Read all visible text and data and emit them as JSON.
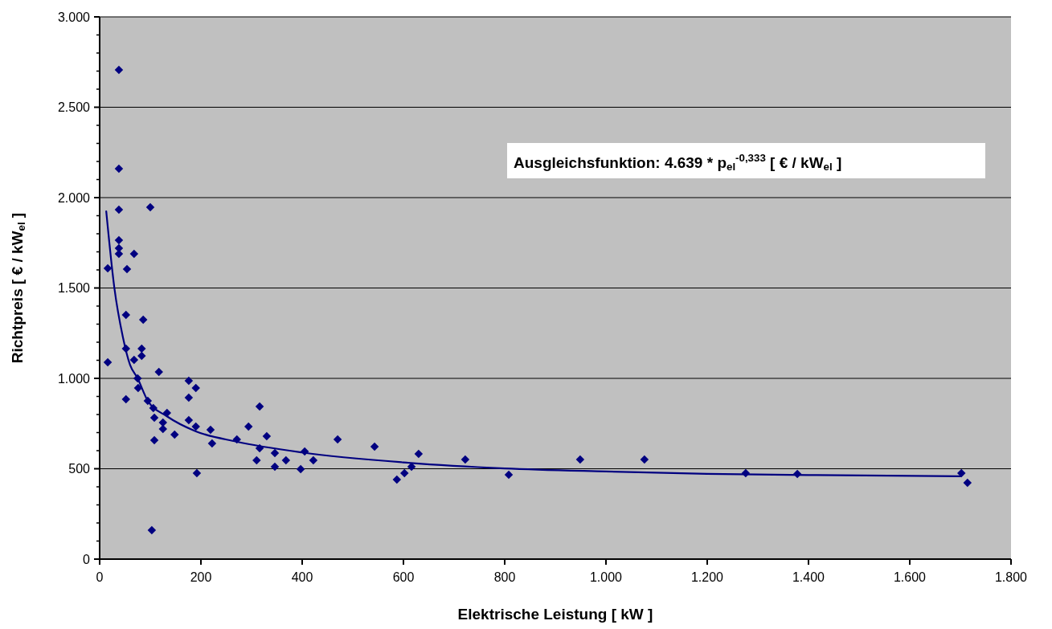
{
  "chart_data": {
    "type": "scatter",
    "xlabel": "Elektrische Leistung  [ kW ]",
    "ylabel": "Richtpreis  [ € / kW$_{el}$ ]",
    "xlim": [
      0,
      1800
    ],
    "ylim": [
      0,
      3000
    ],
    "xticks": [
      0,
      200,
      400,
      600,
      800,
      {
        "value": 1000,
        "label": "1.000"
      },
      {
        "value": 1200,
        "label": "1.200"
      },
      {
        "value": 1400,
        "label": "1.400"
      },
      {
        "value": 1600,
        "label": "1.600"
      },
      {
        "value": 1800,
        "label": "1.800"
      }
    ],
    "yticks": [
      0,
      500,
      {
        "value": 1000,
        "label": "1.000"
      },
      {
        "value": 1500,
        "label": "1.500"
      },
      {
        "value": 2000,
        "label": "2.000"
      },
      {
        "value": 2500,
        "label": "2.500"
      },
      {
        "value": 3000,
        "label": "3.000"
      }
    ],
    "grid": "y",
    "marker": "diamond",
    "annotations": [
      "Ausgleichsfunktion: 4.639 * p$_{el}$$^{-0,333}$  [ € / kW$_{el}$ ]"
    ],
    "series": [
      {
        "type": "scatter",
        "color": "#000080",
        "x": [
          38,
          38,
          38,
          100,
          38,
          38,
          38,
          68,
          16,
          54,
          52,
          86,
          52,
          83,
          83,
          68,
          16,
          117,
          75,
          76,
          52,
          176,
          190,
          176,
          95,
          106,
          133,
          108,
          176,
          190,
          125,
          125,
          148,
          219,
          222,
          271,
          294,
          316,
          330,
          316,
          310,
          108,
          192,
          103,
          346,
          346,
          368,
          397,
          405,
          422,
          470,
          543,
          587,
          602,
          616,
          630,
          722,
          808,
          949,
          1076,
          1276,
          1378,
          1702,
          1714
        ],
        "values": [
          2707,
          2160,
          1933,
          1947,
          1764,
          1720,
          1689,
          1689,
          1609,
          1604,
          1351,
          1324,
          1164,
          1164,
          1124,
          1102,
          1089,
          1036,
          1000,
          947,
          884,
          987,
          947,
          893,
          876,
          836,
          809,
          782,
          769,
          733,
          756,
          720,
          689,
          716,
          640,
          662,
          733,
          844,
          680,
          613,
          547,
          658,
          476,
          160,
          587,
          511,
          547,
          498,
          596,
          547,
          662,
          622,
          440,
          476,
          511,
          582,
          551,
          467,
          551,
          551,
          476,
          471,
          476,
          422
        ]
      },
      {
        "type": "line",
        "color": "#000080",
        "marker": "none",
        "x": [
          13,
          29,
          46,
          60,
          75,
          95,
          133,
          190,
          270,
          400,
          600,
          800,
          1000,
          1200,
          1400,
          1700
        ],
        "values": [
          1924,
          1502,
          1227,
          1075,
          1000,
          876,
          790,
          707,
          650,
          590,
          535,
          502,
          485,
          472,
          465,
          458
        ]
      }
    ]
  }
}
